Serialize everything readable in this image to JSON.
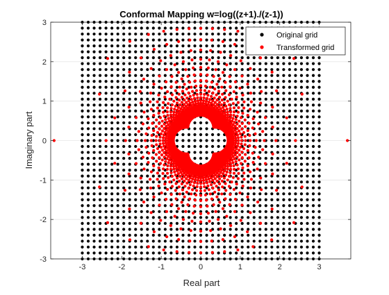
{
  "chart_data": {
    "type": "scatter",
    "title": "Conformal Mapping w=log((z+1)./(z-1))",
    "xlabel": "Real part",
    "ylabel": "Imaginary part",
    "xlim": [
      -3.8,
      3.8
    ],
    "ylim": [
      -3,
      3
    ],
    "xticks": [
      -3,
      -2,
      -1,
      0,
      1,
      2,
      3
    ],
    "yticks": [
      -3,
      -2,
      -1,
      0,
      1,
      2,
      3
    ],
    "xtick_labels": [
      "-3",
      "-2",
      "-1",
      "0",
      "1",
      "2",
      "3"
    ],
    "ytick_labels": [
      "-3",
      "-2",
      "-1",
      "0",
      "1",
      "2",
      "3"
    ],
    "grid": true,
    "legend_position": "top-right",
    "series": [
      {
        "name": "Original grid",
        "color": "#000000",
        "marker": "dot",
        "grid_spec": {
          "x_range": [
            -3,
            3
          ],
          "y_range": [
            -3,
            3
          ],
          "step": 0.15
        }
      },
      {
        "name": "Transformed grid",
        "color": "#ff0000",
        "marker": "dot",
        "mapping": "w = log((z+1)/(z-1)) applied to original grid points"
      }
    ]
  }
}
